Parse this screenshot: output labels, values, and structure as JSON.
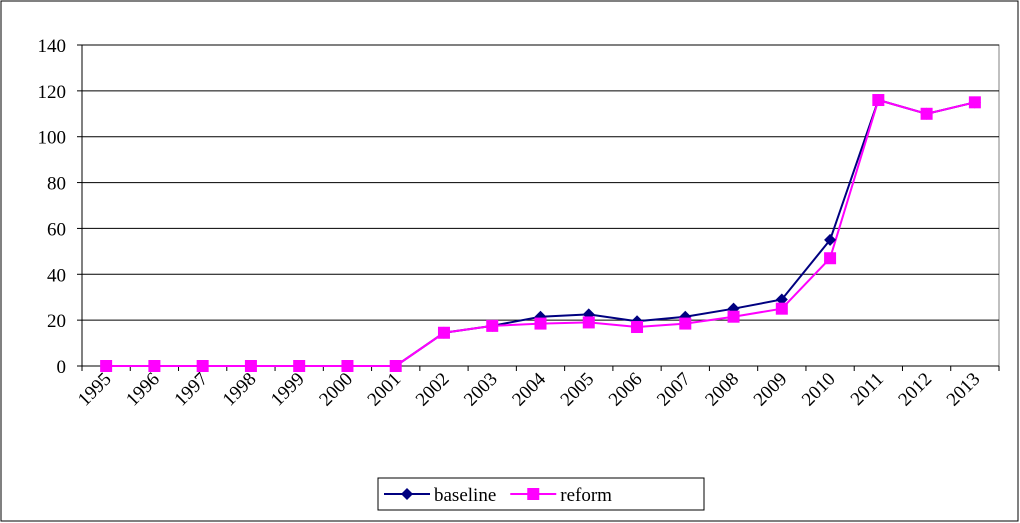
{
  "chart_data": {
    "type": "line",
    "categories": [
      "1995",
      "1996",
      "1997",
      "1998",
      "1999",
      "2000",
      "2001",
      "2002",
      "2003",
      "2004",
      "2005",
      "2006",
      "2007",
      "2008",
      "2009",
      "2010",
      "2011",
      "2012",
      "2013"
    ],
    "series": [
      {
        "name": "baseline",
        "color": "#000080",
        "marker": "diamond",
        "values": [
          0,
          0,
          0,
          0,
          0,
          0,
          0,
          14.5,
          17.5,
          21.5,
          22.5,
          19.5,
          21.5,
          25,
          29,
          55,
          116,
          110,
          115
        ]
      },
      {
        "name": "reform",
        "color": "#ff00ff",
        "marker": "square",
        "values": [
          0,
          0,
          0,
          0,
          0,
          0,
          0,
          14.5,
          17.5,
          18.5,
          19,
          17,
          18.5,
          21.5,
          25,
          47,
          116,
          110,
          115
        ]
      }
    ],
    "ylim": [
      0,
      140
    ],
    "yticks": [
      0,
      20,
      40,
      60,
      80,
      100,
      120,
      140
    ],
    "grid": true,
    "legend": "bottom"
  }
}
